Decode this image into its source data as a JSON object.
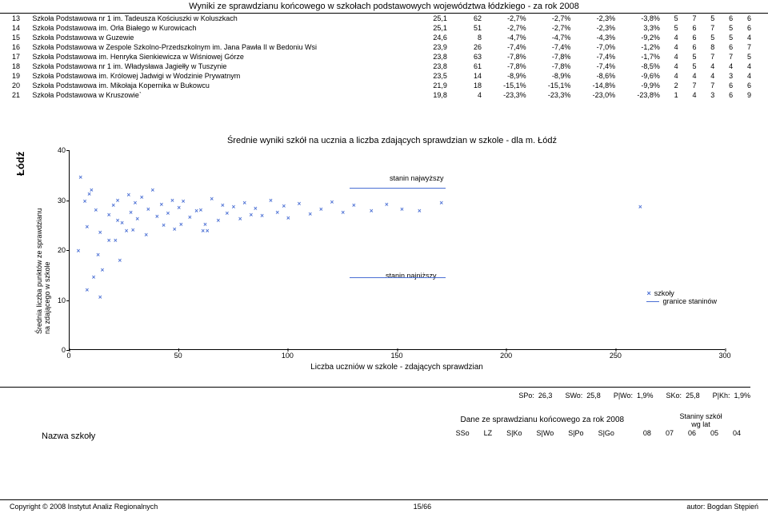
{
  "page_title": "Wyniki ze sprawdzianu końcowego w szkołach podstawowych województwa łódzkiego - za rok 2008",
  "region": "Łódź",
  "table": {
    "rows": [
      {
        "idx": 13,
        "name": "Szkoła Podstawowa nr 1 im. Tadeusza Kościuszki w Koluszkach",
        "sso": "25,1",
        "lz": 62,
        "sko": "-2,7%",
        "swo": "-2,7%",
        "spo": "-2,3%",
        "sgo": "-3,8%",
        "s08": 5,
        "s07": 7,
        "s06": 5,
        "s05": 6,
        "s04": 6
      },
      {
        "idx": 14,
        "name": "Szkoła Podstawowa im. Orła Białego w Kurowicach",
        "sso": "25,1",
        "lz": 51,
        "sko": "-2,7%",
        "swo": "-2,7%",
        "spo": "-2,3%",
        "sgo": "3,3%",
        "s08": 5,
        "s07": 6,
        "s06": 7,
        "s05": 5,
        "s04": 6
      },
      {
        "idx": 15,
        "name": "Szkoła Podstawowa w Guzewie",
        "sso": "24,6",
        "lz": 8,
        "sko": "-4,7%",
        "swo": "-4,7%",
        "spo": "-4,3%",
        "sgo": "-9,2%",
        "s08": 4,
        "s07": 6,
        "s06": 5,
        "s05": 5,
        "s04": 4
      },
      {
        "idx": 16,
        "name": "Szkoła Podstawowa w Zespole Szkolno-Przedszkolnym im. Jana Pawła II w Bedoniu Wsi",
        "sso": "23,9",
        "lz": 26,
        "sko": "-7,4%",
        "swo": "-7,4%",
        "spo": "-7,0%",
        "sgo": "-1,2%",
        "s08": 4,
        "s07": 6,
        "s06": 8,
        "s05": 6,
        "s04": 7
      },
      {
        "idx": 17,
        "name": "Szkoła Podstawowa im. Henryka Sienkiewicza w Wiśniowej Górze",
        "sso": "23,8",
        "lz": 63,
        "sko": "-7,8%",
        "swo": "-7,8%",
        "spo": "-7,4%",
        "sgo": "-1,7%",
        "s08": 4,
        "s07": 5,
        "s06": 7,
        "s05": 7,
        "s04": 5
      },
      {
        "idx": 18,
        "name": "Szkoła Podstawowa nr 1 im. Władysława Jagiełły w Tuszynie",
        "sso": "23,8",
        "lz": 61,
        "sko": "-7,8%",
        "swo": "-7,8%",
        "spo": "-7,4%",
        "sgo": "-8,5%",
        "s08": 4,
        "s07": 5,
        "s06": 4,
        "s05": 4,
        "s04": 4
      },
      {
        "idx": 19,
        "name": "Szkoła Podstawowa im. Królowej Jadwigi w Wodzinie Prywatnym",
        "sso": "23,5",
        "lz": 14,
        "sko": "-8,9%",
        "swo": "-8,9%",
        "spo": "-8,6%",
        "sgo": "-9,6%",
        "s08": 4,
        "s07": 4,
        "s06": 4,
        "s05": 3,
        "s04": 4
      },
      {
        "idx": 20,
        "name": "Szkoła Podstawowa im. Mikołaja Kopernika w Bukowcu",
        "sso": "21,9",
        "lz": 18,
        "sko": "-15,1%",
        "swo": "-15,1%",
        "spo": "-14,8%",
        "sgo": "-9,9%",
        "s08": 2,
        "s07": 7,
        "s06": 7,
        "s05": 6,
        "s04": 6
      },
      {
        "idx": 21,
        "name": "Szkoła Podstawowa w Kruszowie`",
        "sso": "19,8",
        "lz": 4,
        "sko": "-23,3%",
        "swo": "-23,3%",
        "spo": "-23,0%",
        "sgo": "-23,8%",
        "s08": 1,
        "s07": 4,
        "s06": 3,
        "s05": 6,
        "s04": 9
      }
    ]
  },
  "chart": {
    "title": "Średnie wyniki szkół na ucznia a liczba zdających sprawdzian w szkole - dla m. Łódź",
    "x_label": "Liczba uczniów w szkole - zdających sprawdzian",
    "y_label": "Średnia liczba punktów ze sprawdzianu\nna zdającego w szkole",
    "x_min": 0,
    "x_max": 300,
    "y_min": 0,
    "y_max": 40,
    "x_ticks": [
      0,
      50,
      100,
      150,
      200,
      250,
      300
    ],
    "y_ticks": [
      0,
      10,
      20,
      30,
      40
    ],
    "marker_color": "#4a6fd4",
    "ann_high": "stanin najwyższy",
    "ann_low": "stanin najniższy",
    "legend_schools": "szkoły",
    "legend_stanin": "granice staninów",
    "stanin_high_y": 32.5,
    "stanin_low_y": 14.5,
    "points": [
      [
        5,
        34.5
      ],
      [
        8,
        24.6
      ],
      [
        10,
        32
      ],
      [
        12,
        28
      ],
      [
        13,
        19
      ],
      [
        14,
        23.5
      ],
      [
        15,
        16
      ],
      [
        18,
        21.9
      ],
      [
        18,
        27
      ],
      [
        20,
        29
      ],
      [
        21,
        22
      ],
      [
        22,
        30
      ],
      [
        22,
        26
      ],
      [
        23,
        18
      ],
      [
        24,
        25.5
      ],
      [
        26,
        23.9
      ],
      [
        27,
        31
      ],
      [
        28,
        27.5
      ],
      [
        29,
        24
      ],
      [
        30,
        29.5
      ],
      [
        31,
        26.3
      ],
      [
        33,
        30.5
      ],
      [
        35,
        23
      ],
      [
        36,
        28.2
      ],
      [
        38,
        32
      ],
      [
        40,
        26.8
      ],
      [
        42,
        29.2
      ],
      [
        43,
        25
      ],
      [
        45,
        27.3
      ],
      [
        47,
        30
      ],
      [
        48,
        24.2
      ],
      [
        50,
        28.5
      ],
      [
        51,
        25.1
      ],
      [
        52,
        29.8
      ],
      [
        55,
        26.5
      ],
      [
        58,
        27.8
      ],
      [
        60,
        28
      ],
      [
        61,
        23.8
      ],
      [
        62,
        25.1
      ],
      [
        63,
        23.8
      ],
      [
        65,
        30.2
      ],
      [
        68,
        26
      ],
      [
        70,
        29
      ],
      [
        72,
        27.4
      ],
      [
        75,
        28.6
      ],
      [
        78,
        26.2
      ],
      [
        80,
        29.5
      ],
      [
        83,
        27
      ],
      [
        85,
        28.3
      ],
      [
        88,
        26.9
      ],
      [
        92,
        30
      ],
      [
        95,
        27.6
      ],
      [
        98,
        28.8
      ],
      [
        100,
        26.4
      ],
      [
        105,
        29.3
      ],
      [
        110,
        27.2
      ],
      [
        115,
        28.1
      ],
      [
        120,
        29.6
      ],
      [
        125,
        27.5
      ],
      [
        130,
        28.9
      ],
      [
        138,
        27.8
      ],
      [
        145,
        29.1
      ],
      [
        152,
        28.2
      ],
      [
        160,
        27.9
      ],
      [
        170,
        29.4
      ],
      [
        261,
        28.7
      ],
      [
        4,
        19.8
      ],
      [
        8,
        12
      ],
      [
        11,
        14.5
      ],
      [
        14,
        10.5
      ],
      [
        7,
        29.8
      ],
      [
        9,
        31.2
      ]
    ]
  },
  "stats": {
    "spo_l": "SPo:",
    "spo": "26,3",
    "swo_l": "SWo:",
    "swo": "25,8",
    "pwo_l": "P|Wo:",
    "pwo": "1,9%",
    "sko_l": "SKo:",
    "sko": "25,8",
    "pkh_l": "P|Kh:",
    "pkh": "1,9%"
  },
  "lower": {
    "school_name_lbl": "Nazwa szkoły",
    "dane": "Dane ze sprawdzianu końcowego za rok 2008",
    "stanin_hdr1": "Staniny szkół",
    "stanin_hdr2": "wg lat",
    "cols": [
      "SSo",
      "LZ",
      "S|Ko",
      "S|Wo",
      "S|Po",
      "S|Go"
    ],
    "years": [
      "08",
      "07",
      "06",
      "05",
      "04"
    ]
  },
  "footer": {
    "left": "Copyright © 2008 Instytut Analiz Regionalnych",
    "center": "15/66",
    "right": "autor: Bogdan Stępień"
  }
}
